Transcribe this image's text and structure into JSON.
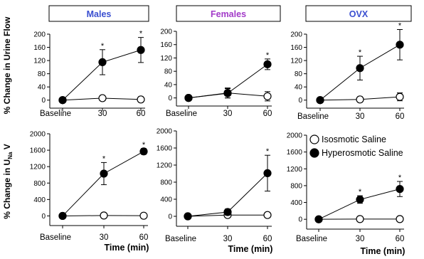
{
  "figure": {
    "ylabel_top": "% Change in Urine Flow",
    "ylabel_bottom_prefix": "% Change in U",
    "ylabel_bottom_sub": "Na",
    "ylabel_bottom_suffix": " V",
    "xlabel_bottom": "Time (min)"
  },
  "legend": {
    "isosmotic": "Isosmotic Saline",
    "hyperosmotic": "Hyperosmotic Saline",
    "colors": {
      "open_fill": "#ffffff",
      "filled_fill": "#000000"
    }
  },
  "title_colors": {
    "males": "#3a4fd0",
    "females": "#a23ac8",
    "ovx": "#3a4fd0"
  },
  "chart_data": [
    {
      "type": "line",
      "panel": "males-urine-flow",
      "title": "Males",
      "categories": [
        "Baseline",
        "30",
        "60"
      ],
      "ylim": [
        -20,
        200
      ],
      "yticks": [
        0,
        40,
        80,
        120,
        160,
        200
      ],
      "series": [
        {
          "name": "Isosmotic Saline",
          "values": [
            0,
            6,
            2
          ],
          "errors": [
            0,
            4,
            8
          ]
        },
        {
          "name": "Hyperosmotic Saline",
          "values": [
            0,
            115,
            152
          ],
          "errors": [
            0,
            38,
            38
          ]
        }
      ],
      "sig": [
        "",
        "*",
        "*"
      ]
    },
    {
      "type": "line",
      "panel": "females-urine-flow",
      "title": "Females",
      "categories": [
        "Baseline",
        "30",
        "60"
      ],
      "ylim": [
        -20,
        200
      ],
      "yticks": [
        0,
        40,
        80,
        120,
        160,
        200
      ],
      "series": [
        {
          "name": "Isosmotic Saline",
          "values": [
            0,
            15,
            5
          ],
          "errors": [
            0,
            15,
            14
          ]
        },
        {
          "name": "Hyperosmotic Saline",
          "values": [
            0,
            14,
            101
          ],
          "errors": [
            0,
            14,
            16
          ]
        }
      ],
      "sig": [
        "",
        "",
        "*"
      ]
    },
    {
      "type": "line",
      "panel": "ovx-urine-flow",
      "title": "OVX",
      "categories": [
        "Baseline",
        "30",
        "60"
      ],
      "ylim": [
        -20,
        200
      ],
      "yticks": [
        0,
        40,
        80,
        120,
        160,
        200
      ],
      "series": [
        {
          "name": "Isosmotic Saline",
          "values": [
            0,
            2,
            10
          ],
          "errors": [
            0,
            8,
            12
          ]
        },
        {
          "name": "Hyperosmotic Saline",
          "values": [
            0,
            97,
            168
          ],
          "errors": [
            0,
            36,
            46
          ]
        }
      ],
      "sig": [
        "",
        "*",
        "*"
      ]
    },
    {
      "type": "line",
      "panel": "males-sodium",
      "title": "",
      "categories": [
        "Baseline",
        "30",
        "60"
      ],
      "ylim": [
        -200,
        2000
      ],
      "yticks": [
        0,
        400,
        800,
        1200,
        1600,
        2000
      ],
      "series": [
        {
          "name": "Isosmotic Saline",
          "values": [
            0,
            10,
            5
          ],
          "errors": [
            0,
            15,
            15
          ]
        },
        {
          "name": "Hyperosmotic Saline",
          "values": [
            0,
            1030,
            1570
          ],
          "errors": [
            0,
            270,
            70
          ]
        }
      ],
      "sig": [
        "",
        "*",
        "*"
      ]
    },
    {
      "type": "line",
      "panel": "females-sodium",
      "title": "",
      "categories": [
        "Baseline",
        "30",
        "60"
      ],
      "ylim": [
        -200,
        2000
      ],
      "yticks": [
        0,
        400,
        800,
        1200,
        1600,
        2000
      ],
      "series": [
        {
          "name": "Isosmotic Saline",
          "values": [
            0,
            30,
            30
          ],
          "errors": [
            0,
            30,
            20
          ]
        },
        {
          "name": "Hyperosmotic Saline",
          "values": [
            0,
            100,
            1010
          ],
          "errors": [
            0,
            70,
            420
          ]
        }
      ],
      "sig": [
        "",
        "",
        "*"
      ]
    },
    {
      "type": "line",
      "panel": "ovx-sodium",
      "title": "",
      "categories": [
        "Baseline",
        "30",
        "60"
      ],
      "ylim": [
        -200,
        2000
      ],
      "yticks": [
        0,
        400,
        800,
        1200,
        1600,
        2000
      ],
      "series": [
        {
          "name": "Isosmotic Saline",
          "values": [
            0,
            5,
            5
          ],
          "errors": [
            0,
            10,
            10
          ]
        },
        {
          "name": "Hyperosmotic Saline",
          "values": [
            0,
            470,
            720
          ],
          "errors": [
            0,
            90,
            180
          ]
        }
      ],
      "sig": [
        "",
        "*",
        "*"
      ]
    }
  ]
}
